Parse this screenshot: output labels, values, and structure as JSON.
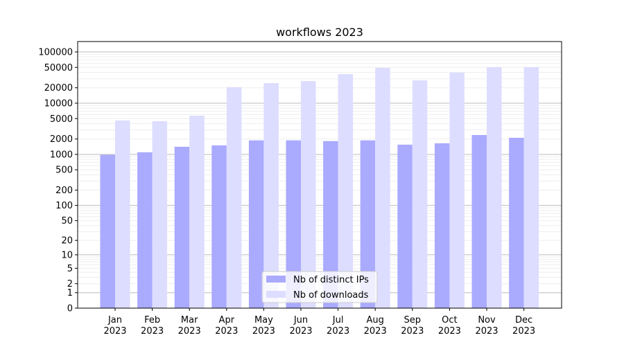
{
  "chart_data": {
    "type": "bar",
    "title": "workflows 2023",
    "xlabel": "",
    "ylabel": "",
    "yscale": "symlog (log10(1+y))",
    "ylim": [
      0,
      150000
    ],
    "grid": true,
    "legend_placement": "bottom-center",
    "categories": [
      "Jan\n2023",
      "Feb\n2023",
      "Mar\n2023",
      "Apr\n2023",
      "May\n2023",
      "Jun\n2023",
      "Jul\n2023",
      "Aug\n2023",
      "Sep\n2023",
      "Oct\n2023",
      "Nov\n2023",
      "Dec\n2023"
    ],
    "yticks": [
      0,
      1,
      2,
      5,
      10,
      20,
      50,
      100,
      200,
      500,
      1000,
      2000,
      5000,
      10000,
      20000,
      50000,
      100000
    ],
    "series": [
      {
        "name": "Nb of distinct IPs",
        "color": "#aaaaff",
        "values": [
          980,
          1100,
          1410,
          1500,
          1880,
          1880,
          1820,
          1880,
          1550,
          1650,
          2390,
          2110
        ]
      },
      {
        "name": "Nb of downloads",
        "color": "#ddddff",
        "values": [
          4600,
          4450,
          5700,
          20500,
          24600,
          27000,
          37000,
          49000,
          27900,
          39700,
          50500,
          50500
        ]
      }
    ]
  }
}
